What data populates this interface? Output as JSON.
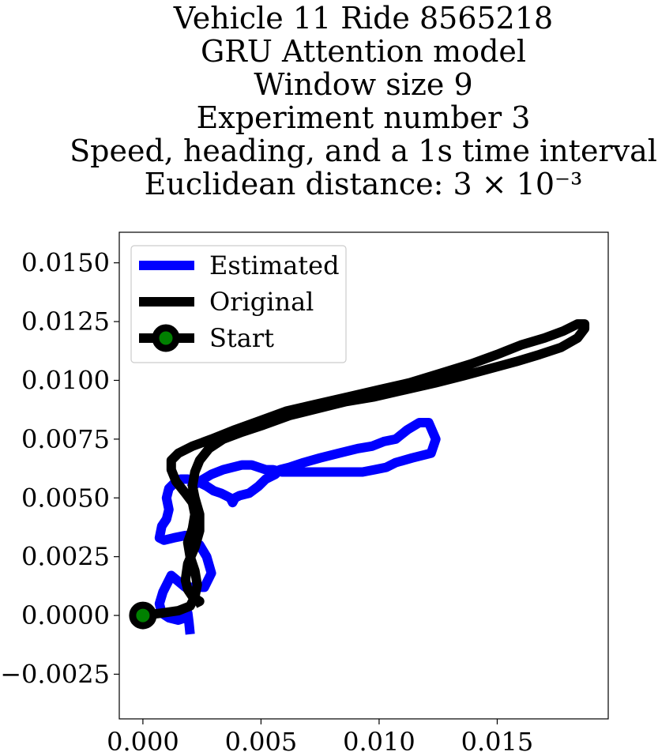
{
  "chart_data": {
    "type": "line",
    "title_lines": [
      "Vehicle 11 Ride 8565218",
      "GRU Attention model",
      "Window size 9",
      "Experiment number 3",
      "Speed, heading, and a 1s time interval",
      "Euclidean distance: 3 × 10⁻³"
    ],
    "xlabel": "",
    "ylabel": "",
    "xlim": [
      -0.001,
      0.0197
    ],
    "ylim": [
      -0.0044,
      0.0163
    ],
    "xticks": [
      {
        "value": 0.0,
        "label": "0.000"
      },
      {
        "value": 0.005,
        "label": "0.005"
      },
      {
        "value": 0.01,
        "label": "0.010"
      },
      {
        "value": 0.015,
        "label": "0.015"
      }
    ],
    "yticks": [
      {
        "value": -0.0025,
        "label": "−0.0025"
      },
      {
        "value": 0.0,
        "label": "0.0000"
      },
      {
        "value": 0.0025,
        "label": "0.0025"
      },
      {
        "value": 0.005,
        "label": "0.0050"
      },
      {
        "value": 0.0075,
        "label": "0.0075"
      },
      {
        "value": 0.01,
        "label": "0.0100"
      },
      {
        "value": 0.0125,
        "label": "0.0125"
      },
      {
        "value": 0.015,
        "label": "0.0150"
      }
    ],
    "grid": false,
    "legend_position": "upper-left",
    "series": [
      {
        "name": "Estimated",
        "color": "#0000ff",
        "x": [
          0.002,
          0.00195,
          0.0019,
          0.0018,
          0.0015,
          0.0011,
          0.0008,
          0.0007,
          0.00085,
          0.0012,
          0.0018,
          0.0026,
          0.0029,
          0.0027,
          0.0024,
          0.0021,
          0.0018,
          0.0013,
          0.0009,
          0.0007,
          0.0008,
          0.001,
          0.0011,
          0.001,
          0.0011,
          0.0013,
          0.0016,
          0.0019,
          0.0023,
          0.0027,
          0.003,
          0.0033,
          0.0035,
          0.0037,
          0.0038,
          0.0039,
          0.0041,
          0.0045,
          0.0049,
          0.0052,
          0.0056,
          0.0058,
          0.0062,
          0.0068,
          0.0075,
          0.0083,
          0.0091,
          0.0097,
          0.0102,
          0.0107,
          0.0112,
          0.0117,
          0.0121,
          0.0124,
          0.0122,
          0.0114,
          0.0107,
          0.0103,
          0.0098,
          0.0093,
          0.0088,
          0.0082,
          0.0074,
          0.0066,
          0.0059,
          0.0055,
          0.0052,
          0.0049,
          0.0046,
          0.0042,
          0.0038,
          0.0034,
          0.0029,
          0.0024,
          0.0021,
          0.002
        ],
        "y": [
          -0.0008,
          -0.0003,
          0.0001,
          -0.0001,
          -0.0002,
          -0.0001,
          0.0001,
          0.0005,
          0.001,
          0.0017,
          0.0012,
          0.0012,
          0.0018,
          0.0025,
          0.003,
          0.0032,
          0.0034,
          0.0033,
          0.0032,
          0.0033,
          0.0038,
          0.0041,
          0.0045,
          0.005,
          0.0054,
          0.0056,
          0.0058,
          0.0058,
          0.0057,
          0.0055,
          0.0053,
          0.0052,
          0.0051,
          0.005,
          0.0048,
          0.005,
          0.0051,
          0.0052,
          0.0055,
          0.0058,
          0.006,
          0.0062,
          0.0063,
          0.0065,
          0.0067,
          0.0069,
          0.0071,
          0.0072,
          0.0074,
          0.0075,
          0.0079,
          0.0082,
          0.0082,
          0.0075,
          0.0069,
          0.0067,
          0.0065,
          0.0063,
          0.0062,
          0.0061,
          0.0061,
          0.0061,
          0.0061,
          0.0061,
          0.0061,
          0.0062,
          0.0062,
          0.0063,
          0.0064,
          0.0064,
          0.0063,
          0.0062,
          0.006,
          0.0057,
          0.0055,
          0.0054
        ]
      },
      {
        "name": "Original",
        "color": "#000000",
        "x": [
          0.0,
          0.0008,
          0.0015,
          0.002,
          0.0022,
          0.0023,
          0.0022,
          0.002,
          0.0019,
          0.0021,
          0.0022,
          0.0021,
          0.0018,
          0.0014,
          0.0012,
          0.0012,
          0.0015,
          0.0021,
          0.0029,
          0.0039,
          0.005,
          0.0061,
          0.0074,
          0.0087,
          0.01,
          0.0113,
          0.0126,
          0.0139,
          0.015,
          0.016,
          0.017,
          0.0178,
          0.0184,
          0.0187,
          0.0187,
          0.0184,
          0.0177,
          0.0168,
          0.0158,
          0.0147,
          0.0136,
          0.0124,
          0.0111,
          0.0098,
          0.0086,
          0.0074,
          0.0062,
          0.0051,
          0.0042,
          0.0034,
          0.0028,
          0.0024,
          0.0022,
          0.0021,
          0.0022,
          0.0024,
          0.0024,
          0.0022,
          0.0019,
          0.0018,
          0.0019,
          0.0021,
          0.0024,
          0.0022
        ],
        "y": [
          0.0,
          0.0001,
          0.0002,
          0.0004,
          0.0008,
          0.0013,
          0.0019,
          0.0025,
          0.0031,
          0.0037,
          0.0043,
          0.0048,
          0.0052,
          0.0057,
          0.0062,
          0.0066,
          0.0069,
          0.0072,
          0.0075,
          0.0079,
          0.0083,
          0.0087,
          0.009,
          0.0093,
          0.0096,
          0.0099,
          0.0103,
          0.0107,
          0.0111,
          0.0115,
          0.0118,
          0.0121,
          0.0124,
          0.0124,
          0.0122,
          0.0118,
          0.0114,
          0.0111,
          0.0108,
          0.0105,
          0.0102,
          0.0099,
          0.0096,
          0.0093,
          0.0091,
          0.0088,
          0.0085,
          0.0081,
          0.0078,
          0.0075,
          0.0071,
          0.0066,
          0.0061,
          0.0055,
          0.005,
          0.0043,
          0.0036,
          0.0029,
          0.0022,
          0.0015,
          0.0011,
          0.0008,
          0.0006,
          0.0005
        ]
      }
    ],
    "markers": [
      {
        "name": "Start",
        "x": 0.0,
        "y": 0.0,
        "edge_color": "#000000",
        "fill_color": "#008000"
      }
    ]
  }
}
